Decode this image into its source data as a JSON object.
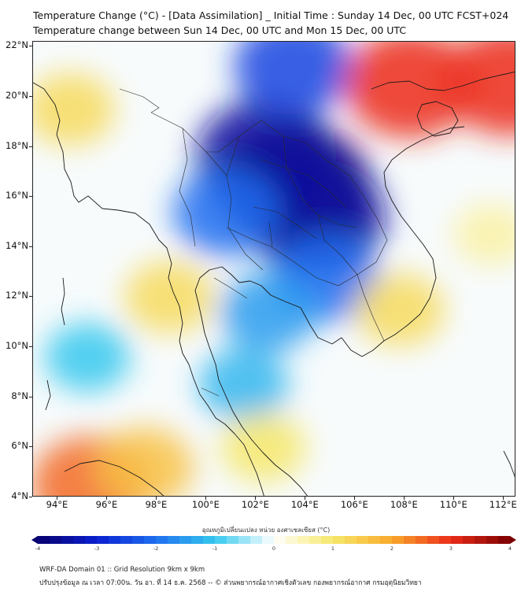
{
  "title": {
    "line1": "Temperature Change (°C) - [Data Assimilation] _ Initial Time : Sunday 14 Dec, 00 UTC FCST+024",
    "line2": "Temperature change between Sun 14 Dec, 00 UTC and Mon 15 Dec, 00 UTC"
  },
  "map": {
    "lat_labels": [
      "22°N",
      "20°N",
      "18°N",
      "16°N",
      "14°N",
      "12°N",
      "10°N",
      "8°N",
      "6°N",
      "4°N"
    ],
    "lon_labels": [
      "94°E",
      "96°E",
      "98°E",
      "100°E",
      "102°E",
      "104°E",
      "106°E",
      "108°E",
      "110°E",
      "112°E"
    ],
    "lat_range": [
      4,
      22.2
    ],
    "lon_range": [
      93,
      112.5
    ],
    "field_blobs": [
      {
        "lon": 103.6,
        "lat": 16.4,
        "value": -4
      },
      {
        "lon": 104.4,
        "lat": 15.2,
        "value": -3.5
      },
      {
        "lon": 102.4,
        "lat": 17.6,
        "value": -3.5
      },
      {
        "lon": 103.5,
        "lat": 21.2,
        "value": -2.5
      },
      {
        "lon": 100.8,
        "lat": 15.4,
        "value": -2
      },
      {
        "lon": 104.8,
        "lat": 12.8,
        "value": -2
      },
      {
        "lon": 102.5,
        "lat": 11.4,
        "value": -1.5
      },
      {
        "lon": 101.5,
        "lat": 8.5,
        "value": -1.2
      },
      {
        "lon": 95.2,
        "lat": 9.6,
        "value": -1
      },
      {
        "lon": 108.2,
        "lat": 20.5,
        "value": 3
      },
      {
        "lon": 112.2,
        "lat": 20.6,
        "value": 3
      },
      {
        "lon": 95.3,
        "lat": 4.5,
        "value": 2.5
      },
      {
        "lon": 94.5,
        "lat": 19.5,
        "value": 1.2
      },
      {
        "lon": 98.5,
        "lat": 12.0,
        "value": 1.2
      },
      {
        "lon": 107.8,
        "lat": 11.5,
        "value": 1.2
      },
      {
        "lon": 102.3,
        "lat": 6.0,
        "value": 1.0
      },
      {
        "lon": 111.5,
        "lat": 14.5,
        "value": 0.6
      },
      {
        "lon": 97.5,
        "lat": 5.2,
        "value": 1.6
      }
    ]
  },
  "colorbar": {
    "label": "อุณหภูมิเปลี่ยนแปลง หน่วย องศาเซลเซียส (°C)",
    "ticks": [
      "-4",
      "-3",
      "-2",
      "-1",
      "0",
      "1",
      "2",
      "3",
      "4"
    ],
    "min": -4,
    "max": 4,
    "colors": [
      "#08006e",
      "#0a1fd0",
      "#1f6ff0",
      "#35c8ee",
      "#ffffff",
      "#f6e86a",
      "#f9a92b",
      "#ec2b1a",
      "#7a0000"
    ]
  },
  "footer": {
    "line1": "WRF-DA Domain 01 :: Grid Resolution 9km x 9km",
    "line2": "ปรับปรุงข้อมูล ณ เวลา 07:00น. วัน อา. ที่ 14 ธ.ค. 2568 -- © ส่วนพยากรณ์อากาศเชิงตัวเลข กองพยากรณ์อากาศ กรมอุตุนิยมวิทยา"
  }
}
